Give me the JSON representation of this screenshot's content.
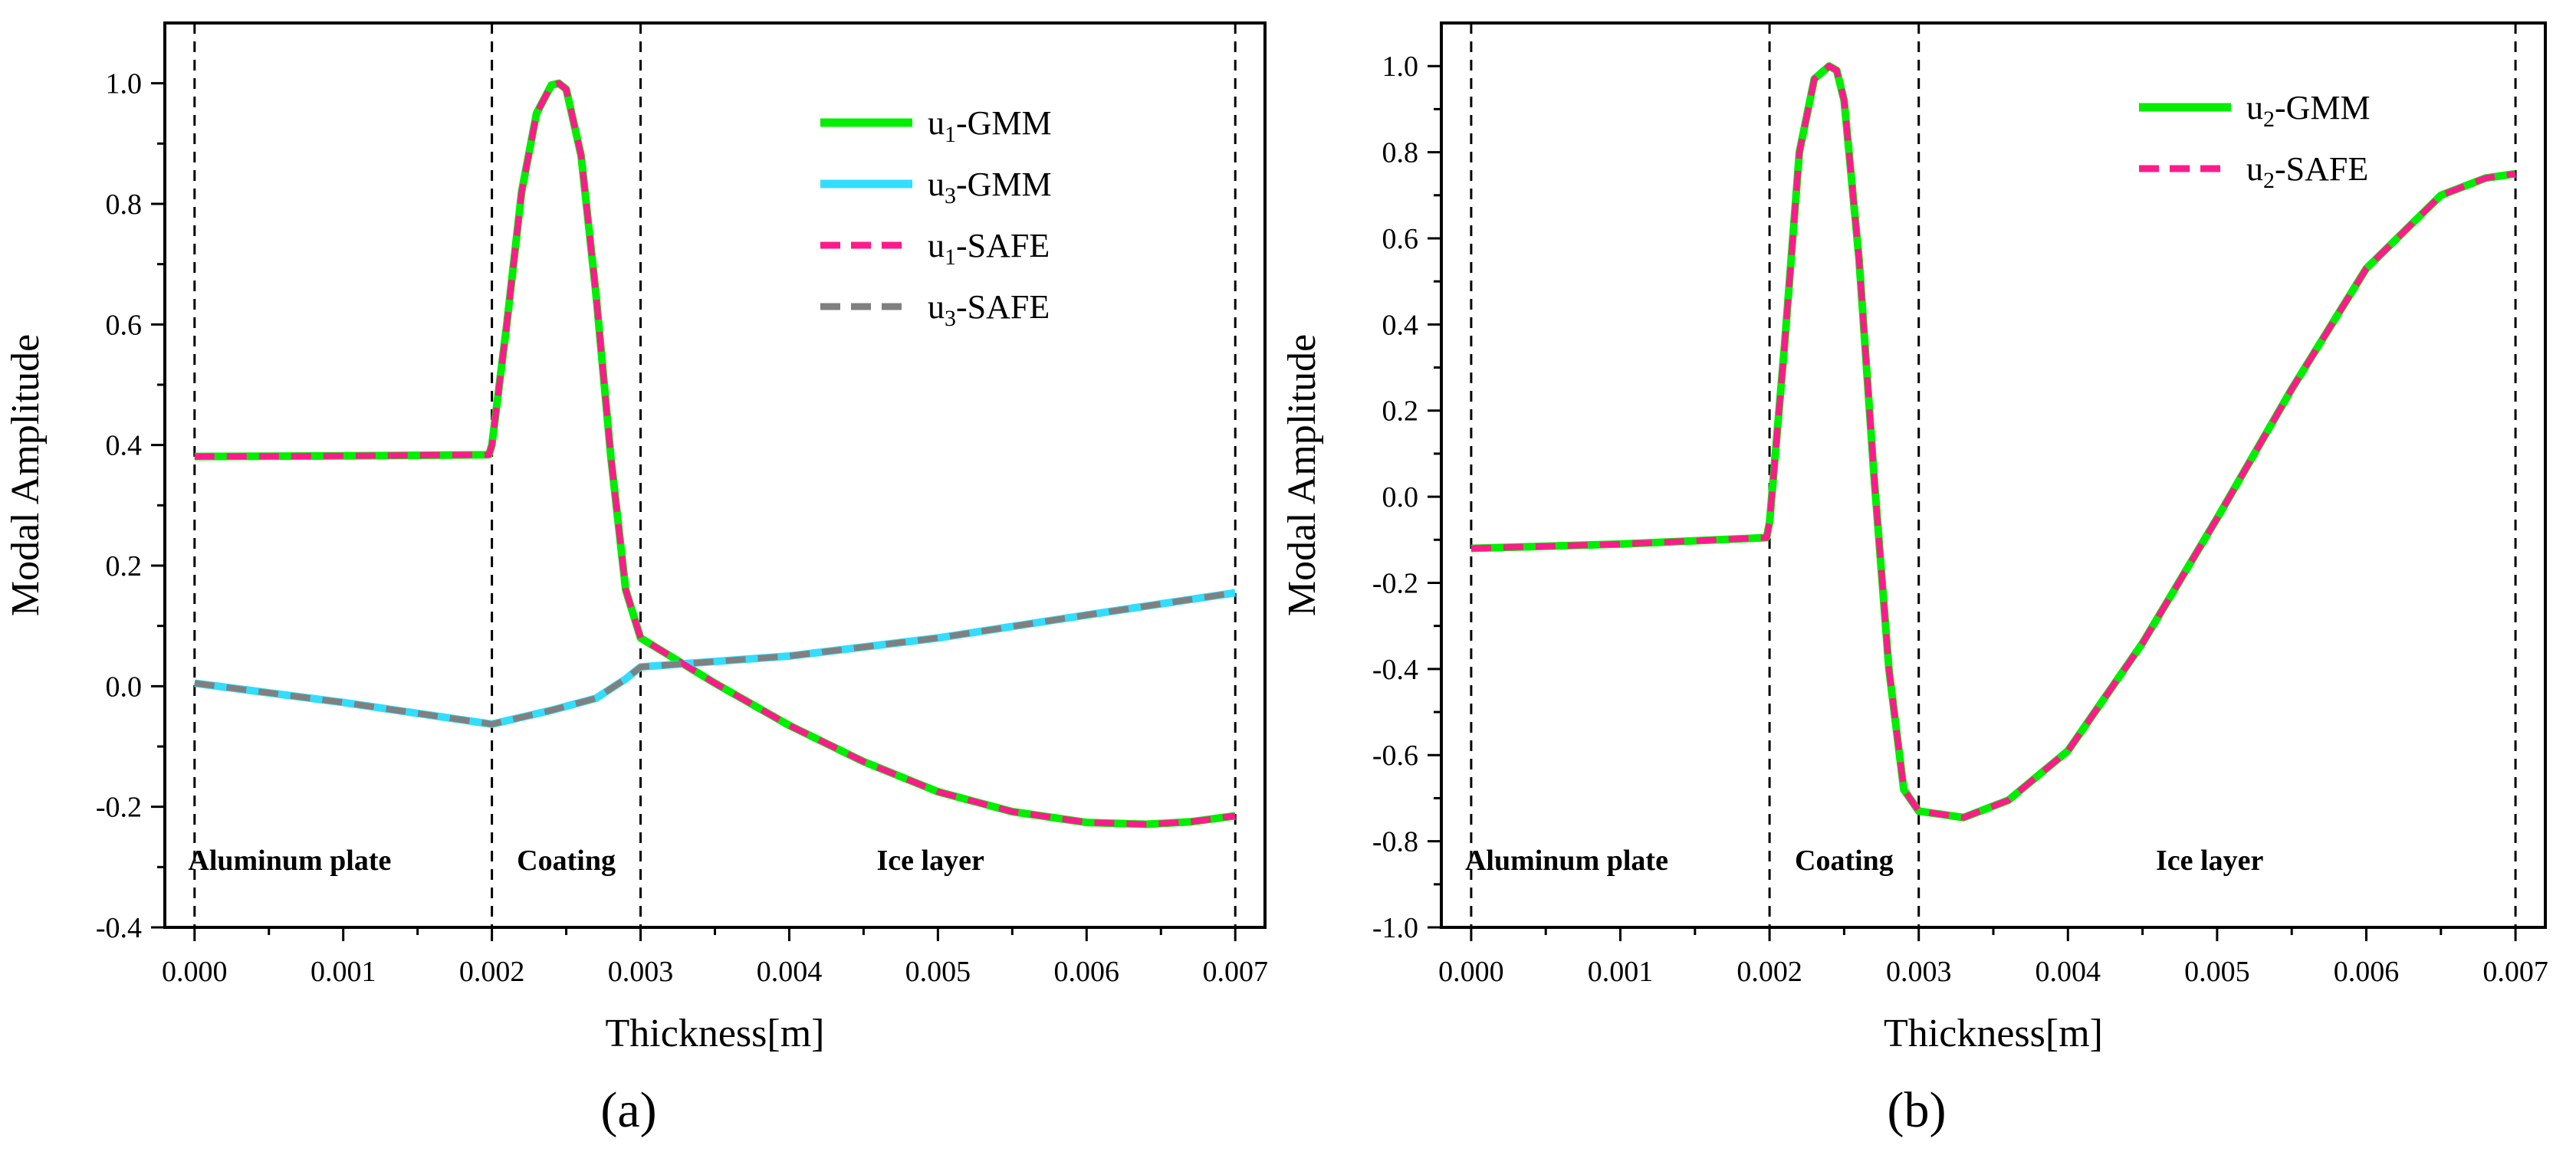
{
  "chart_data": [
    {
      "panel_label": "(a)",
      "type": "line",
      "xlabel": "Thickness[m]",
      "ylabel": "Modal Amplitude",
      "xlim": [
        -0.0002,
        0.0072
      ],
      "ylim": [
        -0.4,
        1.1
      ],
      "xticks": [
        "0.000",
        "0.001",
        "0.002",
        "0.003",
        "0.004",
        "0.005",
        "0.006",
        "0.007"
      ],
      "yticks": [
        "-0.4",
        "-0.2",
        "0.0",
        "0.2",
        "0.4",
        "0.6",
        "0.8",
        "1.0"
      ],
      "grid": false,
      "legend_position": "top-right",
      "boundaries": [
        0.0,
        0.002,
        0.003,
        0.007
      ],
      "regions": [
        {
          "label": "Aluminum plate",
          "x": 0.00064
        },
        {
          "label": "Coating",
          "x": 0.0025
        },
        {
          "label": "Ice layer",
          "x": 0.00495
        }
      ],
      "series": [
        {
          "name_main": "u",
          "name_sub": "1",
          "name_rest": "-GMM",
          "color": "#00ee00",
          "style": "solid",
          "x": [
            0,
            0.001,
            0.00198,
            0.002,
            0.0021,
            0.0022,
            0.0023,
            0.0024,
            0.00245,
            0.0025,
            0.0026,
            0.0027,
            0.0028,
            0.0029,
            0.003,
            0.0035,
            0.004,
            0.0045,
            0.005,
            0.0055,
            0.006,
            0.0064,
            0.0067,
            0.007
          ],
          "y": [
            0.381,
            0.382,
            0.384,
            0.4,
            0.6,
            0.82,
            0.95,
            0.997,
            1.0,
            0.99,
            0.88,
            0.65,
            0.38,
            0.16,
            0.08,
            0.005,
            -0.065,
            -0.125,
            -0.175,
            -0.208,
            -0.226,
            -0.229,
            -0.225,
            -0.215
          ]
        },
        {
          "name_main": "u",
          "name_sub": "3",
          "name_rest": "-GMM",
          "color": "#33ddff",
          "style": "solid",
          "x": [
            0,
            0.001,
            0.002,
            0.0024,
            0.0027,
            0.0029,
            0.003,
            0.004,
            0.005,
            0.006,
            0.007
          ],
          "y": [
            0.005,
            -0.027,
            -0.063,
            -0.04,
            -0.02,
            0.012,
            0.032,
            0.05,
            0.08,
            0.118,
            0.155
          ]
        },
        {
          "name_main": "u",
          "name_sub": "1",
          "name_rest": "-SAFE",
          "color": "#ff1a8c",
          "style": "dashed",
          "x": [
            0,
            0.001,
            0.00198,
            0.002,
            0.0021,
            0.0022,
            0.0023,
            0.0024,
            0.00245,
            0.0025,
            0.0026,
            0.0027,
            0.0028,
            0.0029,
            0.003,
            0.0035,
            0.004,
            0.0045,
            0.005,
            0.0055,
            0.006,
            0.0064,
            0.0067,
            0.007
          ],
          "y": [
            0.381,
            0.382,
            0.384,
            0.4,
            0.6,
            0.82,
            0.95,
            0.997,
            1.0,
            0.99,
            0.88,
            0.65,
            0.38,
            0.16,
            0.08,
            0.005,
            -0.065,
            -0.125,
            -0.175,
            -0.208,
            -0.226,
            -0.229,
            -0.225,
            -0.215
          ]
        },
        {
          "name_main": "u",
          "name_sub": "3",
          "name_rest": "-SAFE",
          "color": "#808080",
          "style": "dashed",
          "x": [
            0,
            0.001,
            0.002,
            0.0024,
            0.0027,
            0.0029,
            0.003,
            0.004,
            0.005,
            0.006,
            0.007
          ],
          "y": [
            0.005,
            -0.027,
            -0.063,
            -0.04,
            -0.02,
            0.012,
            0.032,
            0.05,
            0.08,
            0.118,
            0.155
          ]
        }
      ]
    },
    {
      "panel_label": "(b)",
      "type": "line",
      "xlabel": "Thickness[m]",
      "ylabel": "Modal Amplitude",
      "xlim": [
        -0.0002,
        0.0072
      ],
      "ylim": [
        -1.0,
        1.1
      ],
      "xticks": [
        "0.000",
        "0.001",
        "0.002",
        "0.003",
        "0.004",
        "0.005",
        "0.006",
        "0.007"
      ],
      "yticks": [
        "-1.0",
        "-0.8",
        "-0.6",
        "-0.4",
        "-0.2",
        "0.0",
        "0.2",
        "0.4",
        "0.6",
        "0.8",
        "1.0"
      ],
      "grid": false,
      "legend_position": "top-right",
      "boundaries": [
        0.0,
        0.002,
        0.003,
        0.007
      ],
      "regions": [
        {
          "label": "Aluminum plate",
          "x": 0.00064
        },
        {
          "label": "Coating",
          "x": 0.0025
        },
        {
          "label": "Ice layer",
          "x": 0.00495
        }
      ],
      "series": [
        {
          "name_main": "u",
          "name_sub": "2",
          "name_rest": "-GMM",
          "color": "#00ee00",
          "style": "solid",
          "x": [
            0,
            0.001,
            0.00198,
            0.002,
            0.0021,
            0.0022,
            0.0023,
            0.0024,
            0.00245,
            0.0025,
            0.0026,
            0.0027,
            0.0028,
            0.0029,
            0.003,
            0.0033,
            0.0036,
            0.004,
            0.0045,
            0.005,
            0.0055,
            0.006,
            0.0065,
            0.0068,
            0.007
          ],
          "y": [
            -0.12,
            -0.11,
            -0.095,
            -0.06,
            0.35,
            0.8,
            0.97,
            1.0,
            0.99,
            0.92,
            0.55,
            0.05,
            -0.4,
            -0.68,
            -0.73,
            -0.745,
            -0.705,
            -0.59,
            -0.34,
            -0.05,
            0.25,
            0.53,
            0.7,
            0.74,
            0.75
          ]
        },
        {
          "name_main": "u",
          "name_sub": "2",
          "name_rest": "-SAFE",
          "color": "#ff1a8c",
          "style": "dashed",
          "x": [
            0,
            0.001,
            0.00198,
            0.002,
            0.0021,
            0.0022,
            0.0023,
            0.0024,
            0.00245,
            0.0025,
            0.0026,
            0.0027,
            0.0028,
            0.0029,
            0.003,
            0.0033,
            0.0036,
            0.004,
            0.0045,
            0.005,
            0.0055,
            0.006,
            0.0065,
            0.0068,
            0.007
          ],
          "y": [
            -0.12,
            -0.11,
            -0.095,
            -0.06,
            0.35,
            0.8,
            0.97,
            1.0,
            0.99,
            0.92,
            0.55,
            0.05,
            -0.4,
            -0.68,
            -0.73,
            -0.745,
            -0.705,
            -0.59,
            -0.34,
            -0.05,
            0.25,
            0.53,
            0.7,
            0.74,
            0.75
          ]
        }
      ]
    }
  ]
}
